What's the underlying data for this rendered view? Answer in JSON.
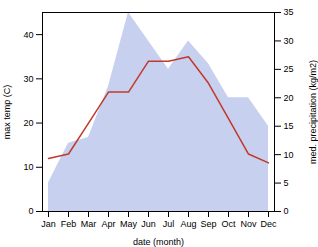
{
  "chart_data": {
    "type": "line",
    "xlabel": "date (month)",
    "ylabel": "max temp (C)",
    "y2label": "med. precipitation (kg/m2)",
    "categories": [
      "Jan",
      "Feb",
      "Mar",
      "Apr",
      "May",
      "Jun",
      "Jul",
      "Aug",
      "Sep",
      "Oct",
      "Nov",
      "Dec"
    ],
    "series": [
      {
        "type": "area",
        "axis": "y2",
        "color": "#c8d0f0",
        "values": [
          5,
          12,
          13,
          22,
          35,
          30,
          25,
          30,
          26,
          20,
          20,
          15
        ]
      },
      {
        "type": "line",
        "color": "#c0392b",
        "values": [
          12,
          13,
          20,
          27,
          27,
          34,
          34,
          35,
          29,
          21,
          13,
          11
        ]
      }
    ],
    "ylim": [
      0,
      45
    ],
    "yticks": [
      0,
      10,
      20,
      30,
      40
    ],
    "y2lim": [
      0,
      35
    ],
    "y2ticks": [
      0,
      5,
      10,
      15,
      20,
      25,
      30,
      35
    ]
  }
}
